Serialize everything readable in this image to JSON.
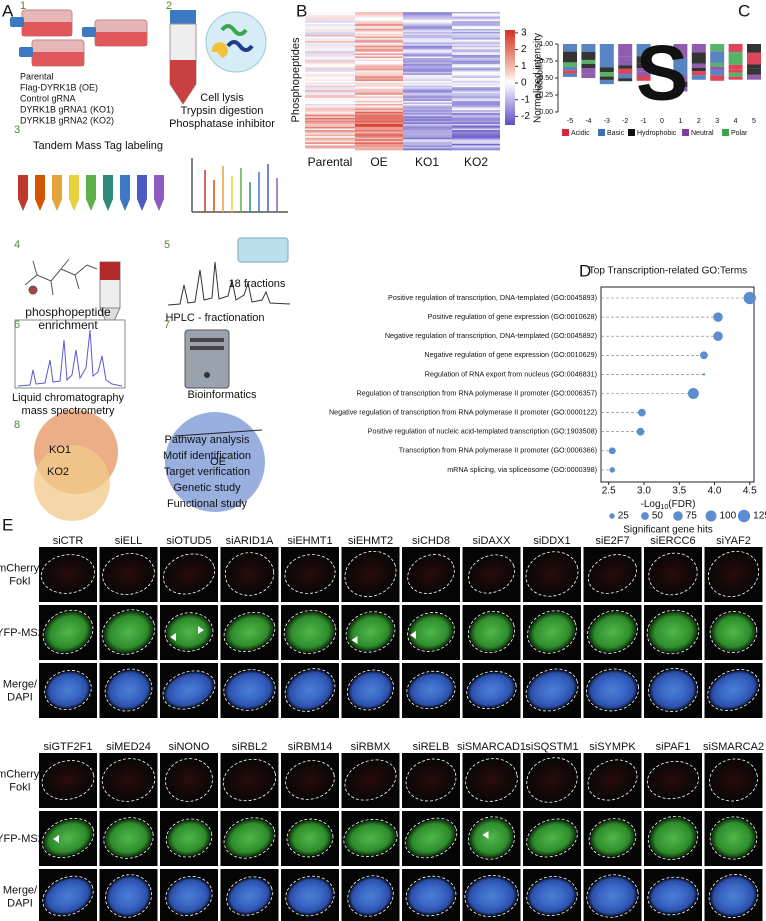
{
  "figure": {
    "panel_labels": [
      "A",
      "B",
      "C",
      "D",
      "E"
    ],
    "panel_a": {
      "step_numbers": [
        1,
        2,
        3,
        4,
        5,
        6,
        7,
        8
      ],
      "cell_lines": [
        "Parental",
        "Flag-DYRK1B (OE)",
        "Control gRNA",
        "DYRK1B gRNA1 (KO1)",
        "DYRK1B gRNA2 (KO2)"
      ],
      "lysis": [
        "Cell lysis",
        "Trypsin digestion",
        "Phosphatase inhibitor"
      ],
      "labeling": "Tandem Mass Tag labeling",
      "enrichment": [
        "phosphopeptide",
        "enrichment"
      ],
      "fractions": "18 fractions",
      "hplc": "HPLC - fractionation",
      "lcms": [
        "Liquid chromatography",
        "mass spectrometry"
      ],
      "bioinformatics": "Bioinformatics",
      "venn": {
        "ko1": "KO1",
        "ko2": "KO2",
        "oe": "OE"
      },
      "analyses": [
        "Pathway analysis",
        "Motif identification",
        "Target verification",
        "Genetic study",
        "Functional study"
      ]
    },
    "panel_b": {
      "y_label": "Phosphopeptides",
      "columns": [
        "Parental",
        "OE",
        "KO1",
        "KO2"
      ],
      "colorbar_label": "Normalized intensity",
      "colorbar_ticks": [
        3,
        2,
        1,
        0,
        -1,
        -2
      ]
    },
    "panel_c": {
      "y_label": "Probability",
      "yticks": [
        {
          "value": 1,
          "label": "1.00"
        },
        {
          "value": 0.75,
          "label": "0.75"
        },
        {
          "value": 0.5,
          "label": "0.50"
        },
        {
          "value": 0.25,
          "label": "0.25"
        },
        {
          "value": 0,
          "label": "0.00"
        }
      ],
      "xticks": [
        -5,
        -4,
        -3,
        -2,
        -1,
        0,
        1,
        2,
        3,
        4,
        5
      ],
      "central_residue": "S",
      "legend": [
        {
          "name": "Acidic",
          "color": "#d7263d"
        },
        {
          "name": "Basic",
          "color": "#3b6fb6"
        },
        {
          "name": "Hydrophobic",
          "color": "#111111"
        },
        {
          "name": "Neutral",
          "color": "#7b3fa0"
        },
        {
          "name": "Polar",
          "color": "#3aa64a"
        }
      ]
    },
    "panel_e": {
      "row_labels": [
        [
          "mCherry-",
          "FokI"
        ],
        [
          "YFP-MS2"
        ],
        [
          "Merge/",
          "DAPI"
        ]
      ],
      "grids": [
        {
          "columns": [
            {
              "name": "siCTR",
              "color": "#111111"
            },
            {
              "name": "siELL",
              "color": "#111111"
            },
            {
              "name": "siOTUD5",
              "color": "#d0202a"
            },
            {
              "name": "siARID1A",
              "color": "#111111"
            },
            {
              "name": "siEHMT1",
              "color": "#111111"
            },
            {
              "name": "siEHMT2",
              "color": "#d0202a"
            },
            {
              "name": "siCHD8",
              "color": "#d0202a"
            },
            {
              "name": "siDAXX",
              "color": "#111111"
            },
            {
              "name": "siDDX1",
              "color": "#111111"
            },
            {
              "name": "siE2F7",
              "color": "#111111"
            },
            {
              "name": "siERCC6",
              "color": "#111111"
            },
            {
              "name": "siYAF2",
              "color": "#111111"
            }
          ]
        },
        {
          "columns": [
            {
              "name": "siGTF2F1",
              "color": "#d0202a"
            },
            {
              "name": "siMED24",
              "color": "#111111"
            },
            {
              "name": "siNONO",
              "color": "#111111"
            },
            {
              "name": "siRBL2",
              "color": "#111111"
            },
            {
              "name": "siRBM14",
              "color": "#111111"
            },
            {
              "name": "siRBMX",
              "color": "#111111"
            },
            {
              "name": "siRELB",
              "color": "#111111"
            },
            {
              "name": "siSMARCAD1",
              "color": "#d0202a"
            },
            {
              "name": "siSQSTM1",
              "color": "#111111"
            },
            {
              "name": "siSYMPK",
              "color": "#111111"
            },
            {
              "name": "siPAF1",
              "color": "#111111"
            },
            {
              "name": "siSMARCA2",
              "color": "#111111"
            }
          ]
        }
      ]
    }
  },
  "chart_data": {
    "type": "dot",
    "title": "Top Transcription-related GO:Terms",
    "categories": [
      "Positive regulation of transcription, DNA-templated (GO:0045893)",
      "Positive regulation of gene expression (GO:0010628)",
      "Negative regulation of transcription, DNA-templated (GO:0045892)",
      "Negative regulation of gene expression (GO:0010629)",
      "Regulation of RNA export from nucleus (GO:0046831)",
      "Regulation of transcription from RNA polymerase II promoter (GO:0006357)",
      "Negative regulation of transcription from RNA polymerase II promoter (GO:0000122)",
      "Positive regulation of nucleic acid-templated transcription (GO:1903508)",
      "Transcription from RNA polymerase II promoter (GO:0006366)",
      "mRNA splicing, via spliceosome (GO:0000398)"
    ],
    "values": [
      4.5,
      4.05,
      4.05,
      3.85,
      3.85,
      3.7,
      2.97,
      2.95,
      2.55,
      2.55
    ],
    "sizes": [
      125,
      75,
      75,
      50,
      5,
      100,
      50,
      50,
      40,
      25
    ],
    "color": "#5b8ed0",
    "x_label": [
      "-Log",
      "10",
      "(FDR)"
    ],
    "xlim": [
      2.39,
      4.56
    ],
    "xticks": [
      2.5,
      {
        "value": 3,
        "label": "3.0"
      },
      3.5,
      {
        "value": 4,
        "label": "4.0"
      },
      4.5
    ],
    "size_legend": [
      25,
      50,
      75,
      100,
      125
    ],
    "size_legend_title": "Significant gene hits",
    "grid": true
  }
}
